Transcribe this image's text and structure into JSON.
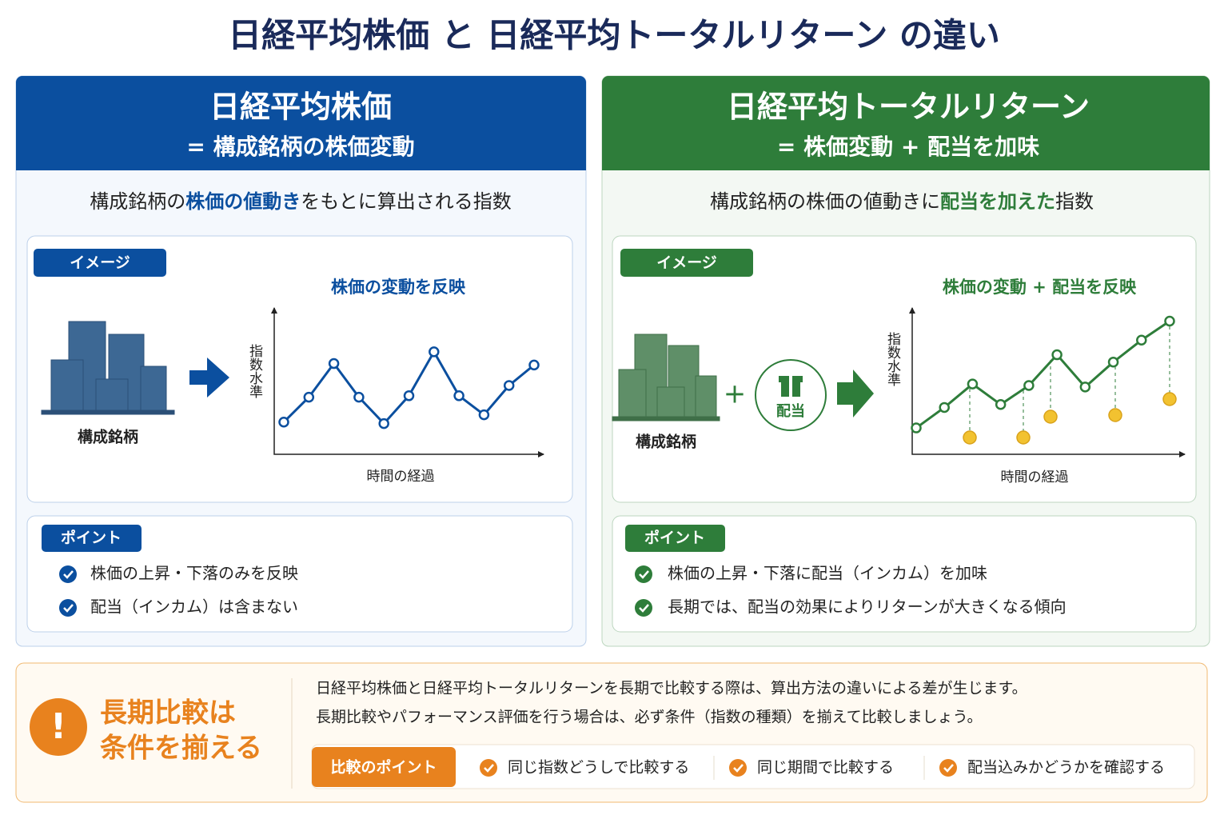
{
  "title": "日経平均株価 と 日経平均トータルリターン の違い",
  "panels": [
    {
      "header_title": "日経平均株価",
      "header_subtitle": "= 構成銘柄の株価変動",
      "description": [
        "構成銘柄の",
        "株価の値動き",
        "をもとに算出される指数"
      ],
      "image_label": "イメージ",
      "building_label": "構成銘柄",
      "chart": {
        "title": "株価の変動を反映",
        "y_label": "指数水準",
        "x_label": "時間の経過",
        "ylim": [
          0,
          100
        ],
        "values": [
          22,
          39,
          62,
          39,
          21,
          40,
          70,
          40,
          27,
          47,
          61
        ]
      },
      "points_label": "ポイント",
      "points": [
        "株価の上昇・下落のみを反映",
        "配当（インカム）は含まない"
      ]
    },
    {
      "header_title": "日経平均トータルリターン",
      "header_subtitle": "= 株価変動 + 配当を加味",
      "description": [
        "構成銘柄の株価の値動きに",
        "配当を加えた",
        "指数"
      ],
      "image_label": "イメージ",
      "building_label": "構成銘柄",
      "dividend_label": "配当",
      "chart": {
        "title": "株価の変動 + 配当を反映",
        "y_label": "指数水準",
        "x_label": "時間の経過",
        "ylim": [
          0,
          100
        ],
        "values": [
          18,
          32,
          48,
          34,
          47,
          68,
          46,
          63,
          78,
          91
        ]
      },
      "points_label": "ポイント",
      "points": [
        "株価の上昇・下落に配当（インカム）を加味",
        "長期では、配当の効果によりリターンが大きくなる傾向"
      ]
    }
  ],
  "note": {
    "heading": [
      "長期比較は",
      "条件を揃える"
    ],
    "body": [
      "日経平均株価と日経平均トータルリターンを長期で比較する際は、算出方法の違いによる差が生じます。",
      "長期比較やパフォーマンス評価を行う場合は、必ず条件（指数の種類）を揃えて比較しましょう。"
    ],
    "points_label": "比較のポイント",
    "points": [
      "同じ指数どうしで比較する",
      "同じ期間で比較する",
      "配当込みかどうかを確認する"
    ]
  }
}
